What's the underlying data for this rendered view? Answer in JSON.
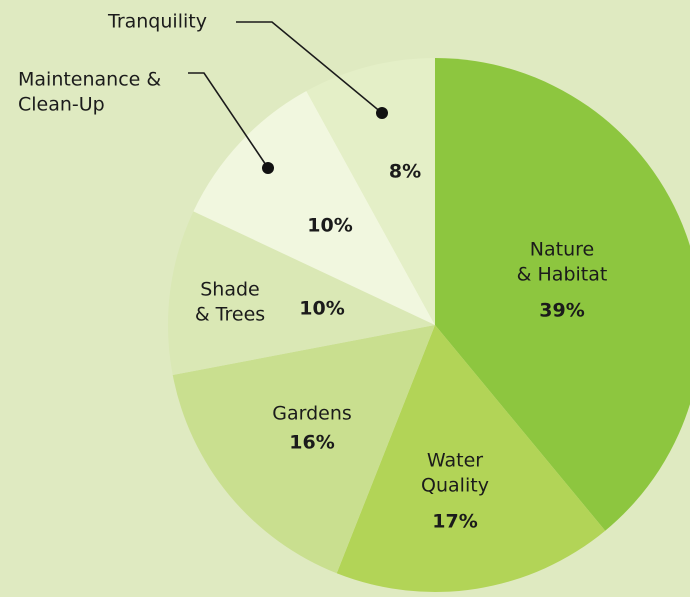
{
  "chart_data": {
    "type": "pie",
    "categories": [
      "Nature\n& Habitat",
      "Water\nQuality",
      "Gardens",
      "Shade\n& Trees",
      "Maintenance &\nClean-Up",
      "Tranquility"
    ],
    "values": [
      39,
      17,
      16,
      10,
      10,
      8
    ],
    "value_labels": [
      "39%",
      "17%",
      "16%",
      "10%",
      "10%",
      "8%"
    ],
    "colors": [
      "#8dc63f",
      "#b2d457",
      "#c9df8f",
      "#dae8b5",
      "#f1f7df",
      "#e4efc7"
    ]
  }
}
